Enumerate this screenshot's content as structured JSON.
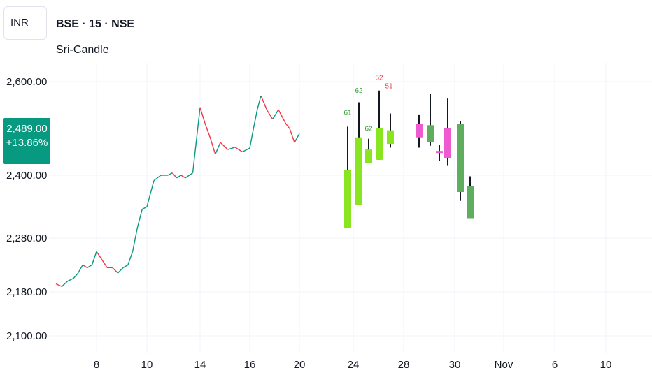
{
  "header": {
    "currency": "INR",
    "symbol": "BSE · 15 · NSE",
    "indicator": "Sri-Candle"
  },
  "last_price": {
    "price": "2,489.00",
    "change": "+13.86%"
  },
  "colors": {
    "up": "#89e51f",
    "down": "#ee5bd1",
    "green_body": "#5fad5f",
    "wick": "#131722",
    "price_line_up": "#089981",
    "price_line_down": "#f23645",
    "label_green": "#2e9e2e",
    "label_red": "#e0404f",
    "grid": "#f0f3fa"
  },
  "chart_data": {
    "type": "candlestick",
    "y_tick_labels": [
      "2,600.00",
      "2,400.00",
      "2,280.00",
      "2,180.00",
      "2,100.00"
    ],
    "y_ticks": [
      2600,
      2400,
      2280,
      2180,
      2100
    ],
    "x_tick_labels": [
      "8",
      "10",
      "14",
      "16",
      "20",
      "24",
      "28",
      "30",
      "Nov",
      "6",
      "10"
    ],
    "grid": true,
    "price_series": [
      {
        "x": "6",
        "y": 2195
      },
      {
        "x": "6",
        "y": 2190
      },
      {
        "x": "6",
        "y": 2200
      },
      {
        "x": "7",
        "y": 2205
      },
      {
        "x": "7",
        "y": 2215
      },
      {
        "x": "7",
        "y": 2230
      },
      {
        "x": "7",
        "y": 2225
      },
      {
        "x": "7",
        "y": 2230
      },
      {
        "x": "8",
        "y": 2255
      },
      {
        "x": "8",
        "y": 2240
      },
      {
        "x": "8",
        "y": 2225
      },
      {
        "x": "8",
        "y": 2225
      },
      {
        "x": "8",
        "y": 2215
      },
      {
        "x": "9",
        "y": 2225
      },
      {
        "x": "9",
        "y": 2230
      },
      {
        "x": "9",
        "y": 2255
      },
      {
        "x": "9",
        "y": 2300
      },
      {
        "x": "9",
        "y": 2335
      },
      {
        "x": "10",
        "y": 2340
      },
      {
        "x": "10",
        "y": 2390
      },
      {
        "x": "10",
        "y": 2400
      },
      {
        "x": "11",
        "y": 2400
      },
      {
        "x": "11",
        "y": 2405
      },
      {
        "x": "11",
        "y": 2395
      },
      {
        "x": "11",
        "y": 2400
      },
      {
        "x": "13",
        "y": 2395
      },
      {
        "x": "13",
        "y": 2405
      },
      {
        "x": "14",
        "y": 2545
      },
      {
        "x": "14",
        "y": 2510
      },
      {
        "x": "14",
        "y": 2480
      },
      {
        "x": "14",
        "y": 2445
      },
      {
        "x": "15",
        "y": 2470
      },
      {
        "x": "15",
        "y": 2455
      },
      {
        "x": "15",
        "y": 2460
      },
      {
        "x": "15",
        "y": 2450
      },
      {
        "x": "16",
        "y": 2458
      },
      {
        "x": "16",
        "y": 2500
      },
      {
        "x": "16",
        "y": 2540
      },
      {
        "x": "17",
        "y": 2570
      },
      {
        "x": "17",
        "y": 2540
      },
      {
        "x": "17",
        "y": 2520
      },
      {
        "x": "18",
        "y": 2540
      },
      {
        "x": "18",
        "y": 2525
      },
      {
        "x": "18",
        "y": 2510
      },
      {
        "x": "19",
        "y": 2500
      },
      {
        "x": "19",
        "y": 2470
      },
      {
        "x": "20",
        "y": 2489
      }
    ],
    "candles": [
      {
        "x": "24",
        "open": 2300,
        "high": 2504,
        "low": 2300,
        "close": 2412,
        "color": "up"
      },
      {
        "x": "24",
        "open": 2343,
        "high": 2556,
        "low": 2343,
        "close": 2481,
        "color": "up"
      },
      {
        "x": "25",
        "open": 2426,
        "high": 2478,
        "low": 2426,
        "close": 2455,
        "color": "up"
      },
      {
        "x": "26",
        "open": 2433,
        "high": 2581,
        "low": 2433,
        "close": 2500,
        "color": "up"
      },
      {
        "x": "27",
        "open": 2467,
        "high": 2532,
        "low": 2459,
        "close": 2496,
        "color": "up"
      },
      {
        "x": "28",
        "open": 2510,
        "high": 2530,
        "low": 2459,
        "close": 2481,
        "color": "down"
      },
      {
        "x": "29",
        "open": 2471,
        "high": 2574,
        "low": 2463,
        "close": 2507,
        "color": "green"
      },
      {
        "x": "29",
        "open": 2452,
        "high": 2465,
        "low": 2430,
        "close": 2449,
        "color": "down"
      },
      {
        "x": "30",
        "open": 2500,
        "high": 2564,
        "low": 2420,
        "close": 2437,
        "color": "down"
      },
      {
        "x": "30",
        "open": 2510,
        "high": 2516,
        "low": 2351,
        "close": 2368,
        "color": "green"
      },
      {
        "x": "31",
        "open": 2379,
        "high": 2398,
        "low": 2318,
        "close": 2318,
        "color": "green"
      }
    ],
    "value_labels": [
      {
        "x": "24",
        "y": 2529,
        "text": "61",
        "color": "green"
      },
      {
        "x": "24",
        "y": 2576,
        "text": "62",
        "color": "green"
      },
      {
        "x": "25",
        "y": 2495,
        "text": "62",
        "color": "green"
      },
      {
        "x": "26",
        "y": 2604,
        "text": "52",
        "color": "red"
      },
      {
        "x": "26",
        "y": 2586,
        "text": "51",
        "color": "red"
      }
    ]
  }
}
